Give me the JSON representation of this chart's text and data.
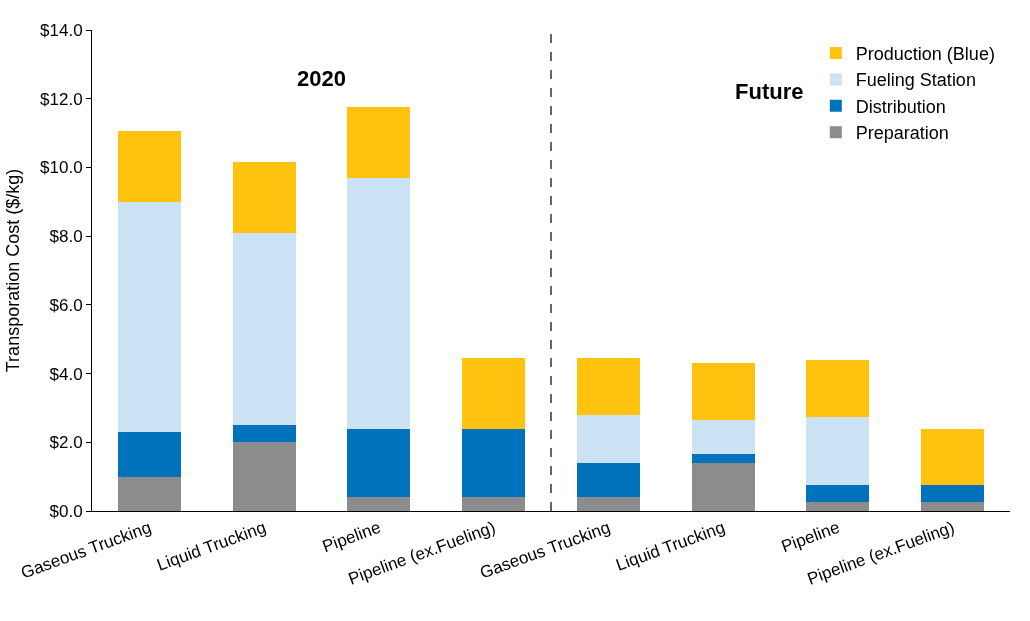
{
  "chart_data": {
    "type": "bar",
    "stacked": true,
    "ylabel": "Transporation Cost ($/kg)",
    "categories": [
      "Gaseous Trucking",
      "Liquid Trucking",
      "Pipeline",
      "Pipeline (ex.Fueling)",
      "Gaseous Trucking",
      "Liquid Trucking",
      "Pipeline",
      "Pipeline (ex.Fueling)"
    ],
    "series": [
      {
        "name": "Preparation",
        "color": "#8c8c8c",
        "values": [
          1.0,
          2.0,
          0.4,
          0.4,
          0.4,
          1.4,
          0.25,
          0.25
        ]
      },
      {
        "name": "Distribution",
        "color": "#0072bc",
        "values": [
          1.3,
          0.5,
          2.0,
          2.0,
          1.0,
          0.25,
          0.5,
          0.5
        ]
      },
      {
        "name": "Fueling Station",
        "color": "#cce3f5",
        "values": [
          6.7,
          5.6,
          7.3,
          0,
          1.4,
          1.0,
          2.0,
          0
        ]
      },
      {
        "name": "Production (Blue)",
        "color": "#ffc20e",
        "values": [
          2.05,
          2.05,
          2.05,
          2.05,
          1.65,
          1.65,
          1.65,
          1.65
        ]
      }
    ],
    "ylim": [
      0,
      14
    ],
    "yticks": [
      {
        "value": 0,
        "label": "$0.0"
      },
      {
        "value": 2,
        "label": "$2.0"
      },
      {
        "value": 4,
        "label": "$4.0"
      },
      {
        "value": 6,
        "label": "$6.0"
      },
      {
        "value": 8,
        "label": "$8.0"
      },
      {
        "value": 10,
        "label": "$10.0"
      },
      {
        "value": 12,
        "label": "$12.0"
      },
      {
        "value": 14,
        "label": "$14.0"
      }
    ],
    "annotations": [
      "2020",
      "Future"
    ],
    "legend": "top right"
  }
}
